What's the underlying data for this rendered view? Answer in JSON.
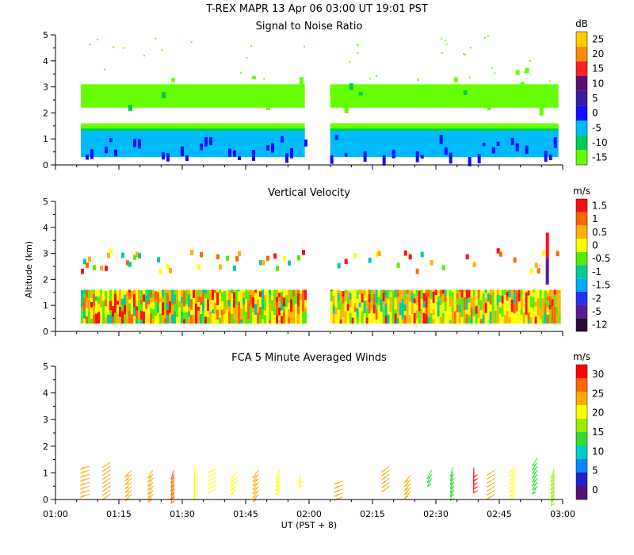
{
  "title_line": "T-REX  MAPR 13 Apr 06  03:00 UT  19:01  PST",
  "ylabel": "Altitude (km)",
  "xlabel": "UT  (PST + 8)",
  "x_ticks": [
    "01:00",
    "01:15",
    "01:30",
    "01:45",
    "02:00",
    "02:15",
    "02:30",
    "02:45",
    "03:00"
  ],
  "y_ticks": [
    "0",
    "1",
    "2",
    "3",
    "4",
    "5"
  ],
  "chart_data": [
    {
      "type": "heatmap",
      "title": "Signal to Noise Ratio",
      "units": "dB",
      "xlim": [
        "01:00",
        "03:00"
      ],
      "ylim": [
        0,
        5
      ],
      "colorbar": {
        "labels": [
          "25",
          "20",
          "15",
          "10",
          "5",
          "0",
          "-5",
          "-10",
          "-15"
        ],
        "colors": [
          "#ffcc00",
          "#ff8c00",
          "#ff2020",
          "#5a1070",
          "#3c1aa6",
          "#1010ff",
          "#00bbff",
          "#00cc55",
          "#66ff00"
        ]
      },
      "data_gap": [
        "01:59",
        "02:05"
      ],
      "layers": [
        {
          "name": "upper SNR layer",
          "alt": [
            2.2,
            3.2
          ],
          "dB": -14
        },
        {
          "name": "boundary layer",
          "alt": [
            0.3,
            1.6
          ],
          "dB": -5
        }
      ]
    },
    {
      "type": "heatmap",
      "title": "Vertical Velocity",
      "units": "m/s",
      "xlim": [
        "01:00",
        "03:00"
      ],
      "ylim": [
        0,
        5
      ],
      "colorbar": {
        "labels": [
          "1.5",
          "1",
          "0.5",
          "0",
          "-0.5",
          "-1",
          "-1.5",
          "-2",
          "-5",
          "-12"
        ],
        "colors": [
          "#ff1010",
          "#ff6600",
          "#ffb000",
          "#ffff00",
          "#55ee00",
          "#00cc99",
          "#00aaff",
          "#2233ee",
          "#5a1a9a",
          "#2a0a3a"
        ]
      },
      "data_gap": [
        "01:59",
        "02:05"
      ]
    },
    {
      "type": "wind_barbs",
      "title": "FCA 5 Minute Averaged Winds",
      "units": "m/s",
      "xlim": [
        "01:00",
        "03:00"
      ],
      "ylim": [
        0,
        5
      ],
      "colorbar": {
        "labels": [
          "30",
          "25",
          "20",
          "15",
          "10",
          "5",
          "0"
        ],
        "colors": [
          "#ff0000",
          "#ff6600",
          "#ffaa00",
          "#ffff00",
          "#99ee00",
          "#33dd33",
          "#00cccc",
          "#0088ff",
          "#2222cc",
          "#551177"
        ]
      },
      "barbs": [
        {
          "t": "01:08",
          "alt": [
            0.2,
            1.3
          ],
          "speed": 22
        },
        {
          "t": "01:13",
          "alt": [
            0.2,
            1.4
          ],
          "speed": 23
        },
        {
          "t": "01:18",
          "alt": [
            0.2,
            1.2
          ],
          "speed": 24
        },
        {
          "t": "01:23",
          "alt": [
            0.2,
            1.2
          ],
          "speed": 22
        },
        {
          "t": "01:28",
          "alt": [
            0.2,
            1.2
          ],
          "speed": 26
        },
        {
          "t": "01:33",
          "alt": [
            0.3,
            1.2
          ],
          "speed": 21
        },
        {
          "t": "01:38",
          "alt": [
            0.4,
            1.2
          ],
          "speed": 21
        },
        {
          "t": "01:43",
          "alt": [
            0.4,
            1.1
          ],
          "speed": 20
        },
        {
          "t": "01:48",
          "alt": [
            0.2,
            1.1
          ],
          "speed": 23
        },
        {
          "t": "01:53",
          "alt": [
            0.5,
            1.1
          ],
          "speed": 21
        },
        {
          "t": "01:58",
          "alt": [
            0.8,
            1.0
          ],
          "speed": 20
        },
        {
          "t": "02:08",
          "alt": [
            0.1,
            0.7
          ],
          "speed": 23
        },
        {
          "t": "02:19",
          "alt": [
            0.5,
            1.3
          ],
          "speed": 24
        },
        {
          "t": "02:24",
          "alt": [
            0.3,
            1.0
          ],
          "speed": 23
        },
        {
          "t": "02:29",
          "alt": [
            0.8,
            1.2
          ],
          "speed": 12
        },
        {
          "t": "02:34",
          "alt": [
            0.3,
            1.3
          ],
          "speed": 13
        },
        {
          "t": "02:39",
          "alt": [
            0.6,
            1.2
          ],
          "speed": 29
        },
        {
          "t": "02:44",
          "alt": [
            0.2,
            1.2
          ],
          "speed": 22
        },
        {
          "t": "02:49",
          "alt": [
            0.2,
            1.3
          ],
          "speed": 21
        },
        {
          "t": "02:54",
          "alt": [
            0.5,
            1.6
          ],
          "speed": 14
        },
        {
          "t": "02:58",
          "alt": [
            0.1,
            1.2
          ],
          "speed": 18
        }
      ]
    }
  ]
}
